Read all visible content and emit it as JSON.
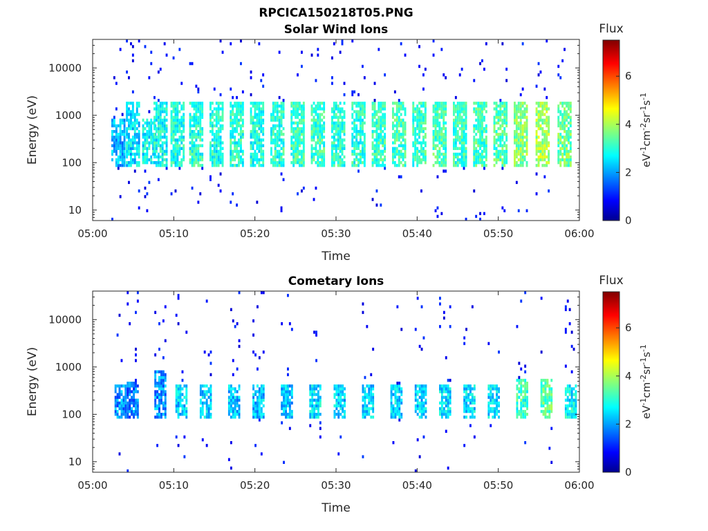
{
  "title": "RPCICA150218T05.PNG",
  "panels": [
    {
      "title": "Solar Wind Ions",
      "xlabel": "Time",
      "ylabel": "Energy (eV)"
    },
    {
      "title": "Cometary Ions",
      "xlabel": "Time",
      "ylabel": "Energy (eV)"
    }
  ],
  "colorbar": {
    "title": "Flux",
    "units": "eV-1cm-2sr-1s-1",
    "ticks": [
      "0",
      "2",
      "4",
      "6"
    ],
    "range": [
      0,
      7.5
    ]
  },
  "xticks": [
    "05:00",
    "05:10",
    "05:20",
    "05:30",
    "05:40",
    "05:50",
    "06:00"
  ],
  "yticks": [
    "10",
    "100",
    "1000",
    "10000"
  ],
  "chart_data": [
    {
      "type": "heatmap",
      "title": "Solar Wind Ions",
      "xlabel": "Time",
      "ylabel": "Energy (eV)",
      "xlim": [
        "05:00",
        "06:00"
      ],
      "ylim": [
        6,
        40000
      ],
      "yscale": "log",
      "colorbar": {
        "title": "Flux",
        "range": [
          0,
          7.5
        ]
      },
      "note_values": "flux scans approx every 2.5 min, core energy ~80-2000 eV, flux ~2-5",
      "bursts": [
        {
          "t": 3.2,
          "elo": 80,
          "ehi": 800,
          "f": 2.3
        },
        {
          "t": 5.0,
          "elo": 80,
          "ehi": 2000,
          "f": 2.6
        },
        {
          "t": 7.0,
          "elo": 90,
          "ehi": 900,
          "f": 2.8
        },
        {
          "t": 8.4,
          "elo": 80,
          "ehi": 2000,
          "f": 2.9
        },
        {
          "t": 10.5,
          "elo": 80,
          "ehi": 2000,
          "f": 3.0
        },
        {
          "t": 12.8,
          "elo": 80,
          "ehi": 2000,
          "f": 3.1
        },
        {
          "t": 15.3,
          "elo": 80,
          "ehi": 2000,
          "f": 3.0
        },
        {
          "t": 17.8,
          "elo": 80,
          "ehi": 2000,
          "f": 3.1
        },
        {
          "t": 20.3,
          "elo": 80,
          "ehi": 2000,
          "f": 3.0
        },
        {
          "t": 22.8,
          "elo": 80,
          "ehi": 2000,
          "f": 3.1
        },
        {
          "t": 25.3,
          "elo": 80,
          "ehi": 2000,
          "f": 3.2
        },
        {
          "t": 27.8,
          "elo": 80,
          "ehi": 2000,
          "f": 3.2
        },
        {
          "t": 30.3,
          "elo": 80,
          "ehi": 2000,
          "f": 3.1
        },
        {
          "t": 32.8,
          "elo": 80,
          "ehi": 2000,
          "f": 3.1
        },
        {
          "t": 35.3,
          "elo": 80,
          "ehi": 2000,
          "f": 3.2
        },
        {
          "t": 37.8,
          "elo": 80,
          "ehi": 2000,
          "f": 3.3
        },
        {
          "t": 40.3,
          "elo": 80,
          "ehi": 2000,
          "f": 3.2
        },
        {
          "t": 42.8,
          "elo": 80,
          "ehi": 2000,
          "f": 3.3
        },
        {
          "t": 45.3,
          "elo": 80,
          "ehi": 2000,
          "f": 3.2
        },
        {
          "t": 47.8,
          "elo": 80,
          "ehi": 2000,
          "f": 3.3
        },
        {
          "t": 50.3,
          "elo": 80,
          "ehi": 2000,
          "f": 3.4
        },
        {
          "t": 52.8,
          "elo": 80,
          "ehi": 2000,
          "f": 3.8
        },
        {
          "t": 55.5,
          "elo": 80,
          "ehi": 2000,
          "f": 4.0
        },
        {
          "t": 58.2,
          "elo": 80,
          "ehi": 2000,
          "f": 3.6
        }
      ]
    },
    {
      "type": "heatmap",
      "title": "Cometary Ions",
      "xlabel": "Time",
      "ylabel": "Energy (eV)",
      "xlim": [
        "05:00",
        "06:00"
      ],
      "ylim": [
        6,
        40000
      ],
      "yscale": "log",
      "colorbar": {
        "title": "Flux",
        "range": [
          0,
          7.5
        ]
      },
      "bursts": [
        {
          "t": 3.5,
          "elo": 80,
          "ehi": 400,
          "f": 2.0
        },
        {
          "t": 5.0,
          "elo": 80,
          "ehi": 500,
          "f": 1.8
        },
        {
          "t": 8.4,
          "elo": 80,
          "ehi": 800,
          "f": 2.0
        },
        {
          "t": 11.0,
          "elo": 80,
          "ehi": 400,
          "f": 2.5
        },
        {
          "t": 14.0,
          "elo": 80,
          "ehi": 400,
          "f": 2.5
        },
        {
          "t": 17.5,
          "elo": 80,
          "ehi": 400,
          "f": 2.4
        },
        {
          "t": 20.5,
          "elo": 80,
          "ehi": 400,
          "f": 2.4
        },
        {
          "t": 24.0,
          "elo": 80,
          "ehi": 400,
          "f": 2.4
        },
        {
          "t": 27.5,
          "elo": 80,
          "ehi": 400,
          "f": 2.6
        },
        {
          "t": 30.5,
          "elo": 80,
          "ehi": 400,
          "f": 2.5
        },
        {
          "t": 34.0,
          "elo": 80,
          "ehi": 400,
          "f": 2.5
        },
        {
          "t": 37.5,
          "elo": 80,
          "ehi": 400,
          "f": 2.5
        },
        {
          "t": 40.5,
          "elo": 80,
          "ehi": 400,
          "f": 2.5
        },
        {
          "t": 43.5,
          "elo": 80,
          "ehi": 400,
          "f": 2.6
        },
        {
          "t": 46.5,
          "elo": 80,
          "ehi": 400,
          "f": 2.6
        },
        {
          "t": 49.5,
          "elo": 80,
          "ehi": 400,
          "f": 2.6
        },
        {
          "t": 53.0,
          "elo": 80,
          "ehi": 600,
          "f": 3.2
        },
        {
          "t": 56.0,
          "elo": 80,
          "ehi": 600,
          "f": 3.5
        },
        {
          "t": 59.0,
          "elo": 80,
          "ehi": 400,
          "f": 2.8
        }
      ]
    }
  ]
}
